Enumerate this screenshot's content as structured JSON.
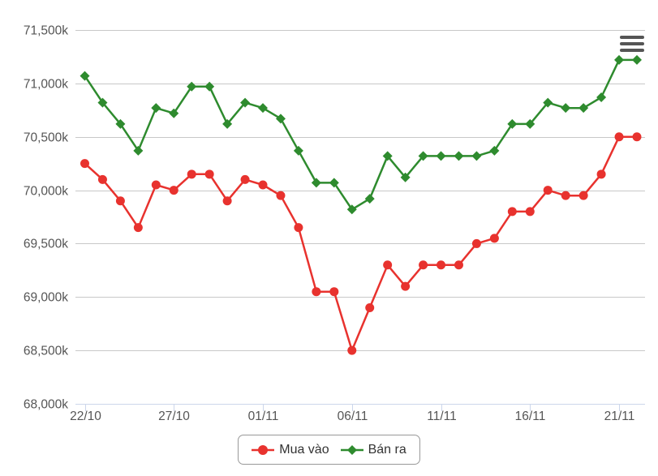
{
  "colors": {
    "buy": "#e8322e",
    "sell": "#2e8b2e",
    "grid": "#c8c8c8",
    "axis": "#ccd6eb"
  },
  "menu": {
    "icon": "hamburger-menu-icon"
  },
  "legend": {
    "items": [
      {
        "label": "Mua vào",
        "marker": "circle"
      },
      {
        "label": "Bán ra",
        "marker": "diamond"
      }
    ]
  },
  "chart_data": {
    "type": "line",
    "title": "",
    "xlabel": "",
    "ylabel": "",
    "ylim": [
      68000,
      71500
    ],
    "y_ticks": [
      "68,000k",
      "68,500k",
      "69,000k",
      "69,500k",
      "70,000k",
      "70,500k",
      "71,000k",
      "71,500k"
    ],
    "x_ticks": [
      {
        "index": 0,
        "label": "22/10"
      },
      {
        "index": 5,
        "label": "27/10"
      },
      {
        "index": 10,
        "label": "01/11"
      },
      {
        "index": 15,
        "label": "06/11"
      },
      {
        "index": 20,
        "label": "11/11"
      },
      {
        "index": 25,
        "label": "16/11"
      },
      {
        "index": 30,
        "label": "21/11"
      }
    ],
    "series": [
      {
        "name": "Mua vào",
        "values": [
          70250,
          70100,
          69900,
          69650,
          70050,
          70000,
          70150,
          70150,
          69900,
          70100,
          70050,
          69950,
          69650,
          69050,
          69050,
          68500,
          68900,
          69300,
          69100,
          69300,
          69300,
          69300,
          69500,
          69550,
          69800,
          69800,
          70000,
          69950,
          69950,
          70150,
          70500,
          70500
        ]
      },
      {
        "name": "Bán ra",
        "values": [
          71070,
          70820,
          70620,
          70370,
          70770,
          70720,
          70970,
          70970,
          70620,
          70820,
          70770,
          70670,
          70370,
          70070,
          70070,
          69820,
          69920,
          70320,
          70120,
          70320,
          70320,
          70320,
          70320,
          70370,
          70620,
          70620,
          70820,
          70770,
          70770,
          70870,
          71220,
          71220
        ]
      }
    ],
    "grid": true,
    "legend_position": "bottom-center"
  }
}
